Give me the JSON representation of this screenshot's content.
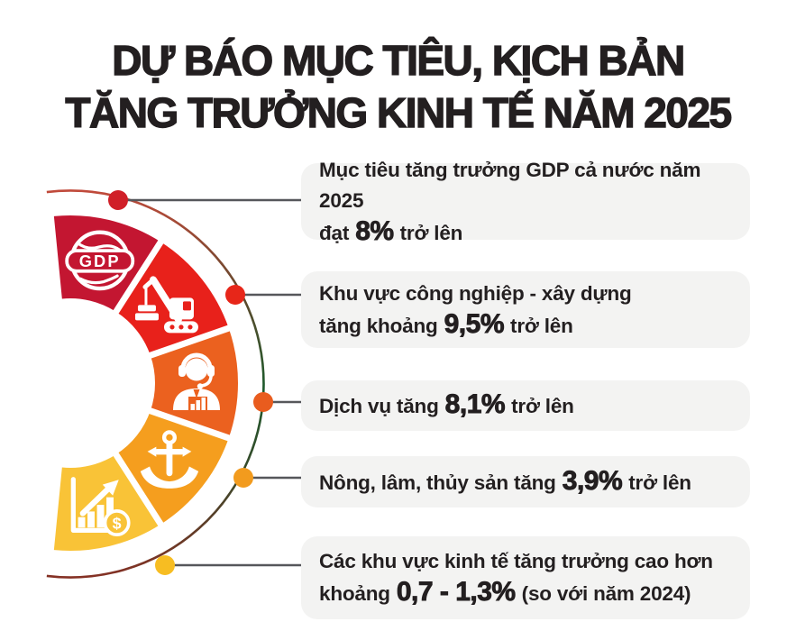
{
  "title": {
    "line1": "DỰ BÁO MỤC TIÊU, KỊCH BẢN",
    "line2": "TĂNG TRƯỞNG KINH TẾ NĂM 2025"
  },
  "items": [
    {
      "line1": "Mục tiêu tăng trưởng GDP cả nước năm 2025",
      "pre": "đạt ",
      "value": "8%",
      "post": " trở lên",
      "dot_color": "#d01f28"
    },
    {
      "line1": "Khu vực công nghiệp - xây dựng",
      "pre": "tăng khoảng ",
      "value": "9,5%",
      "post": " trở lên",
      "dot_color": "#e72619"
    },
    {
      "line1": "",
      "pre": "Dịch vụ tăng ",
      "value": "8,1%",
      "post": " trở lên",
      "dot_color": "#e95c1e"
    },
    {
      "line1": "",
      "pre": "Nông, lâm, thủy sản tăng ",
      "value": "3,9%",
      "post": " trở lên",
      "dot_color": "#f29b1e"
    },
    {
      "line1": "Các khu vực kinh tế tăng trưởng cao hơn",
      "pre": "khoảng ",
      "value": "0,7 - 1,3%",
      "post": " (so với năm 2024)",
      "dot_color": "#f7bd22"
    }
  ],
  "donut": {
    "segments": [
      {
        "icon": "gdp-globe-icon",
        "label": "GDP",
        "color": "#c31631"
      },
      {
        "icon": "construction-crane-icon",
        "label": "",
        "color": "#e8211b"
      },
      {
        "icon": "call-center-agent-icon",
        "label": "",
        "color": "#eb611f"
      },
      {
        "icon": "anchor-icon",
        "label": "",
        "color": "#f59e1e"
      },
      {
        "icon": "growth-chart-dollar-icon",
        "label": "",
        "color": "#f9c337"
      }
    ]
  },
  "colors": {
    "title_text": "#231f20",
    "body_text": "#231f20",
    "callout_bg": "#f3f3f2",
    "leader_line": "#56575b",
    "arc_green": "#1e5a2c",
    "arc_red": "#c24a3b"
  }
}
